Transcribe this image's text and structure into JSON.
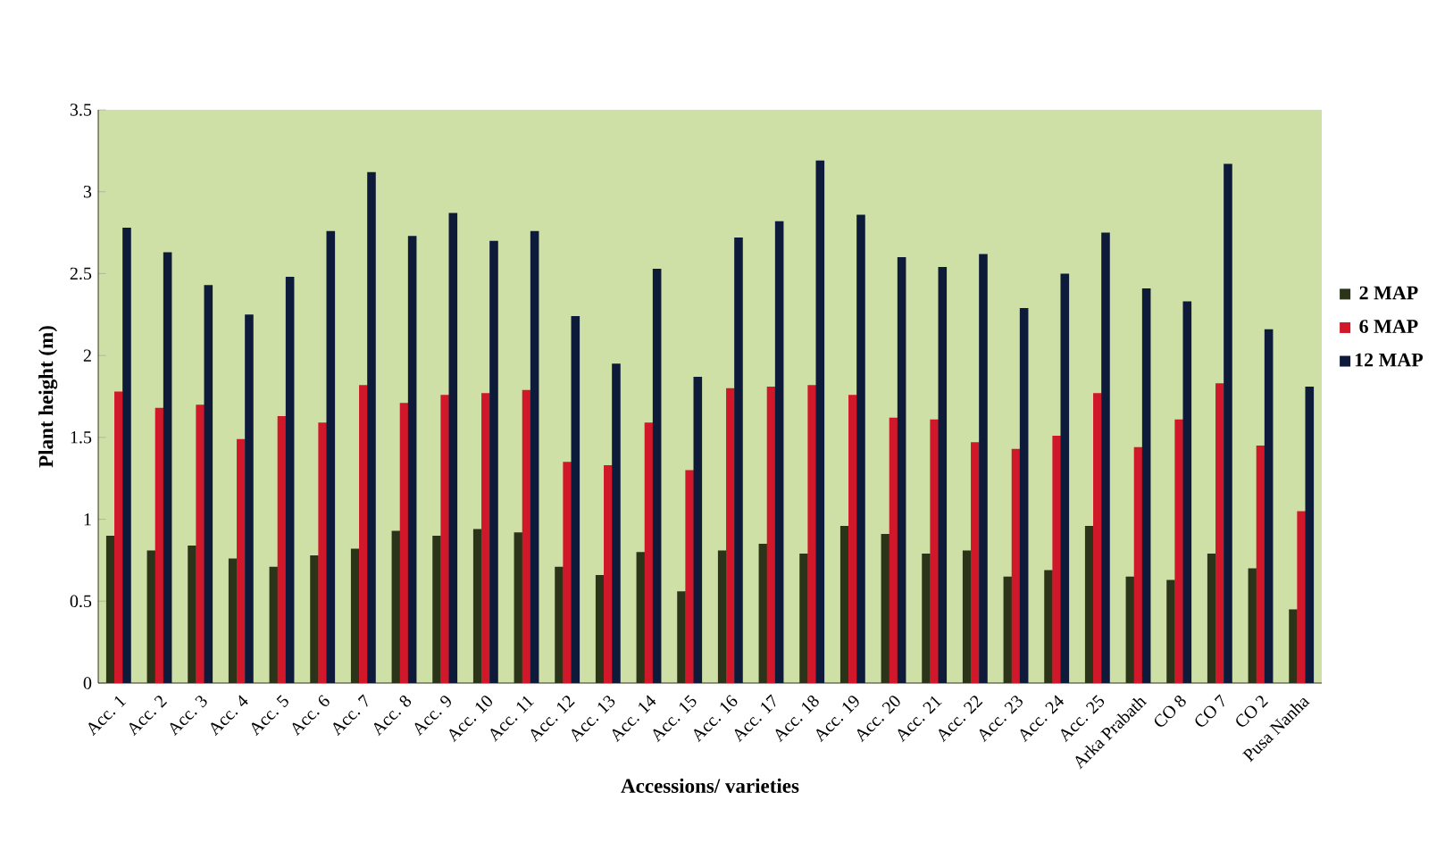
{
  "chart_data": {
    "type": "bar",
    "xlabel": "Accessions/ varieties",
    "ylabel": "Plant height (m)",
    "categories": [
      "Acc. 1",
      "Acc. 2",
      "Acc. 3",
      "Acc. 4",
      "Acc. 5",
      "Acc. 6",
      "Acc. 7",
      "Acc. 8",
      "Acc. 9",
      "Acc. 10",
      "Acc. 11",
      "Acc. 12",
      "Acc. 13",
      "Acc. 14",
      "Acc. 15",
      "Acc. 16",
      "Acc. 17",
      "Acc. 18",
      "Acc. 19",
      "Acc. 20",
      "Acc. 21",
      "Acc. 22",
      "Acc. 23",
      "Acc. 24",
      "Acc. 25",
      "Arka Prabath",
      "CO 8",
      "CO 7",
      "CO 2",
      "Pusa Nanha"
    ],
    "series": [
      {
        "name": "2 MAP",
        "color": "#2b3318",
        "values": [
          0.9,
          0.81,
          0.84,
          0.76,
          0.71,
          0.78,
          0.82,
          0.93,
          0.9,
          0.94,
          0.92,
          0.71,
          0.66,
          0.8,
          0.56,
          0.81,
          0.85,
          0.79,
          0.96,
          0.91,
          0.79,
          0.81,
          0.65,
          0.69,
          0.96,
          0.65,
          0.63,
          0.79,
          0.7,
          0.45
        ]
      },
      {
        "name": "6 MAP",
        "color": "#d0182a",
        "values": [
          1.78,
          1.68,
          1.7,
          1.49,
          1.63,
          1.59,
          1.82,
          1.71,
          1.76,
          1.77,
          1.79,
          1.35,
          1.33,
          1.59,
          1.3,
          1.8,
          1.81,
          1.82,
          1.76,
          1.62,
          1.61,
          1.47,
          1.43,
          1.51,
          1.77,
          1.44,
          1.61,
          1.83,
          1.45,
          1.05
        ]
      },
      {
        "name": "12 MAP",
        "color": "#0d1a3a",
        "values": [
          2.78,
          2.63,
          2.43,
          2.25,
          2.48,
          2.76,
          3.12,
          2.73,
          2.87,
          2.7,
          2.76,
          2.24,
          1.95,
          2.53,
          1.87,
          2.72,
          2.82,
          3.19,
          2.86,
          2.6,
          2.54,
          2.62,
          2.29,
          2.5,
          2.75,
          2.41,
          2.33,
          3.17,
          2.16,
          1.81
        ]
      }
    ],
    "ylim": [
      0,
      3.5
    ],
    "yticks": [
      0,
      0.5,
      1,
      1.5,
      2,
      2.5,
      3,
      3.5
    ],
    "legend": "right"
  }
}
